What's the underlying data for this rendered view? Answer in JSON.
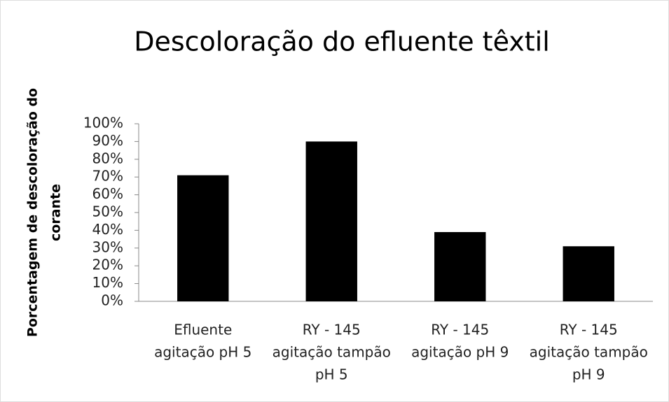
{
  "chart_data": {
    "type": "bar",
    "title": "Descoloração do efluente têxtil",
    "y_label": [
      "Porcentagem de descoloração do",
      "corante"
    ],
    "categories": [
      [
        "Efluente",
        "agitação pH 5"
      ],
      [
        "RY - 145",
        "agitação tampão",
        "pH 5"
      ],
      [
        "RY - 145",
        "agitação pH 9"
      ],
      [
        "RY - 145",
        "agitação tampão",
        "pH 9"
      ]
    ],
    "values": [
      71,
      90,
      39,
      31
    ],
    "color": "#000000",
    "ylim": [
      0,
      100
    ],
    "yticks": [
      {
        "value": 0,
        "label": "0%"
      },
      {
        "value": 10,
        "label": "10%"
      },
      {
        "value": 20,
        "label": "20%"
      },
      {
        "value": 30,
        "label": "30%"
      },
      {
        "value": 40,
        "label": "40%"
      },
      {
        "value": 50,
        "label": "50%"
      },
      {
        "value": 60,
        "label": "60%"
      },
      {
        "value": 70,
        "label": "70%"
      },
      {
        "value": 80,
        "label": "80%"
      },
      {
        "value": 90,
        "label": "90%"
      },
      {
        "value": 100,
        "label": "100%"
      }
    ],
    "grid": false
  }
}
